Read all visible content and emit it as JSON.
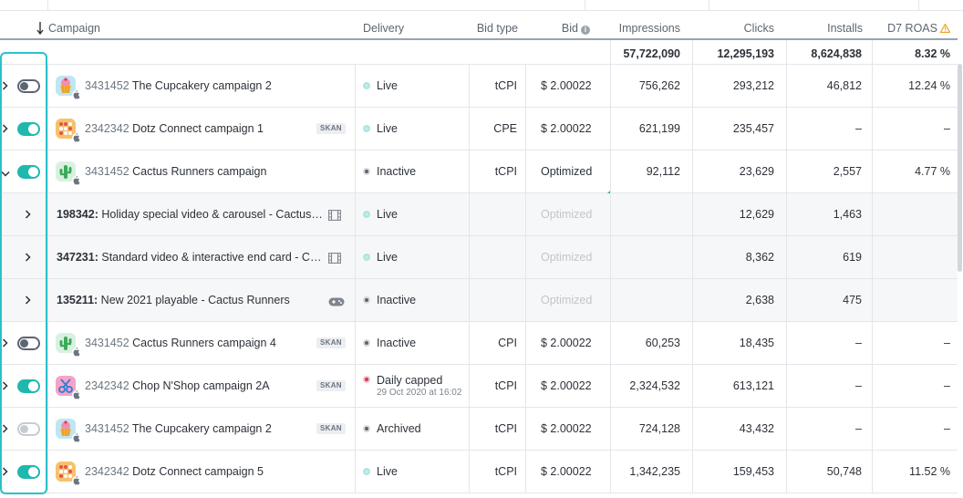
{
  "header": {
    "campaign": "Campaign",
    "delivery": "Delivery",
    "bid_type": "Bid type",
    "bid": "Bid",
    "impressions": "Impressions",
    "clicks": "Clicks",
    "installs": "Installs",
    "d7_roas": "D7 ROAS"
  },
  "totals": {
    "impressions": "57,722,090",
    "clicks": "12,295,193",
    "installs": "8,624,838",
    "d7_roas": "8.32 %"
  },
  "rows": [
    {
      "kind": "campaign",
      "toggle": "off",
      "expanded": false,
      "icon": "cupcake",
      "id": "3431452",
      "name": "The Cupcakery campaign 2",
      "skan": "",
      "delivery": "Live",
      "status": "live",
      "bid_type": "tCPI",
      "bid": "$ 2.00022",
      "impressions": "756,262",
      "clicks": "293,212",
      "installs": "46,812",
      "roas": "12.24 %"
    },
    {
      "kind": "campaign",
      "toggle": "on",
      "expanded": false,
      "icon": "dotz",
      "id": "2342342",
      "name": "Dotz Connect campaign 1",
      "skan": "SKAN",
      "delivery": "Live",
      "status": "live",
      "bid_type": "CPE",
      "bid": "$ 2.00022",
      "impressions": "621,199",
      "clicks": "235,457",
      "installs": "–",
      "roas": "–"
    },
    {
      "kind": "campaign",
      "toggle": "on",
      "expanded": true,
      "icon": "cactus",
      "id": "3431452",
      "name": "Cactus Runners campaign",
      "skan": "",
      "delivery": "Inactive",
      "status": "inactive",
      "bid_type": "tCPI",
      "bid": "Optimized",
      "impressions": "92,112",
      "clicks": "23,629",
      "installs": "2,557",
      "roas": "4.77 %"
    },
    {
      "kind": "ad",
      "adid": "198342:",
      "adname": "Holiday special video & carousel - Cactus…",
      "adicon": "film",
      "delivery": "Live",
      "status": "live",
      "bid": "Optimized",
      "clicks": "12,629",
      "installs": "1,463"
    },
    {
      "kind": "ad",
      "adid": "347231:",
      "adname": "Standard video & interactive end card - C…",
      "adicon": "film",
      "delivery": "Live",
      "status": "live",
      "bid": "Optimized",
      "clicks": "8,362",
      "installs": "619"
    },
    {
      "kind": "ad",
      "adid": "135211:",
      "adname": "New 2021 playable - Cactus Runners",
      "adicon": "gamepad",
      "delivery": "Inactive",
      "status": "inactive",
      "bid": "Optimized",
      "clicks": "2,638",
      "installs": "475"
    },
    {
      "kind": "campaign",
      "toggle": "off",
      "expanded": false,
      "icon": "cactus",
      "id": "3431452",
      "name": "Cactus Runners campaign 4",
      "skan": "SKAN",
      "delivery": "Inactive",
      "status": "inactive",
      "bid_type": "CPI",
      "bid": "$ 2.00022",
      "impressions": "60,253",
      "clicks": "18,435",
      "installs": "–",
      "roas": "–"
    },
    {
      "kind": "campaign",
      "toggle": "on",
      "expanded": false,
      "icon": "chop",
      "id": "2342342",
      "name": "Chop N'Shop campaign 2A",
      "skan": "SKAN",
      "delivery": "Daily capped",
      "delivery_sub": "29 Oct 2020 at 16:02",
      "status": "capped",
      "bid_type": "tCPI",
      "bid": "$ 2.00022",
      "impressions": "2,324,532",
      "clicks": "613,121",
      "installs": "–",
      "roas": "–"
    },
    {
      "kind": "campaign",
      "toggle": "disabled",
      "expanded": false,
      "icon": "cupcake",
      "id": "3431452",
      "name": "The Cupcakery campaign 2",
      "skan": "SKAN",
      "delivery": "Archived",
      "status": "inactive",
      "bid_type": "tCPI",
      "bid": "$ 2.00022",
      "impressions": "724,128",
      "clicks": "43,432",
      "installs": "–",
      "roas": "–"
    },
    {
      "kind": "campaign",
      "toggle": "on",
      "expanded": false,
      "icon": "dotz",
      "id": "2342342",
      "name": "Dotz Connect campaign 5",
      "skan": "",
      "delivery": "Live",
      "status": "live",
      "bid_type": "tCPI",
      "bid": "$ 2.00022",
      "impressions": "1,342,235",
      "clicks": "159,453",
      "installs": "50,748",
      "roas": "11.52 %"
    }
  ]
}
